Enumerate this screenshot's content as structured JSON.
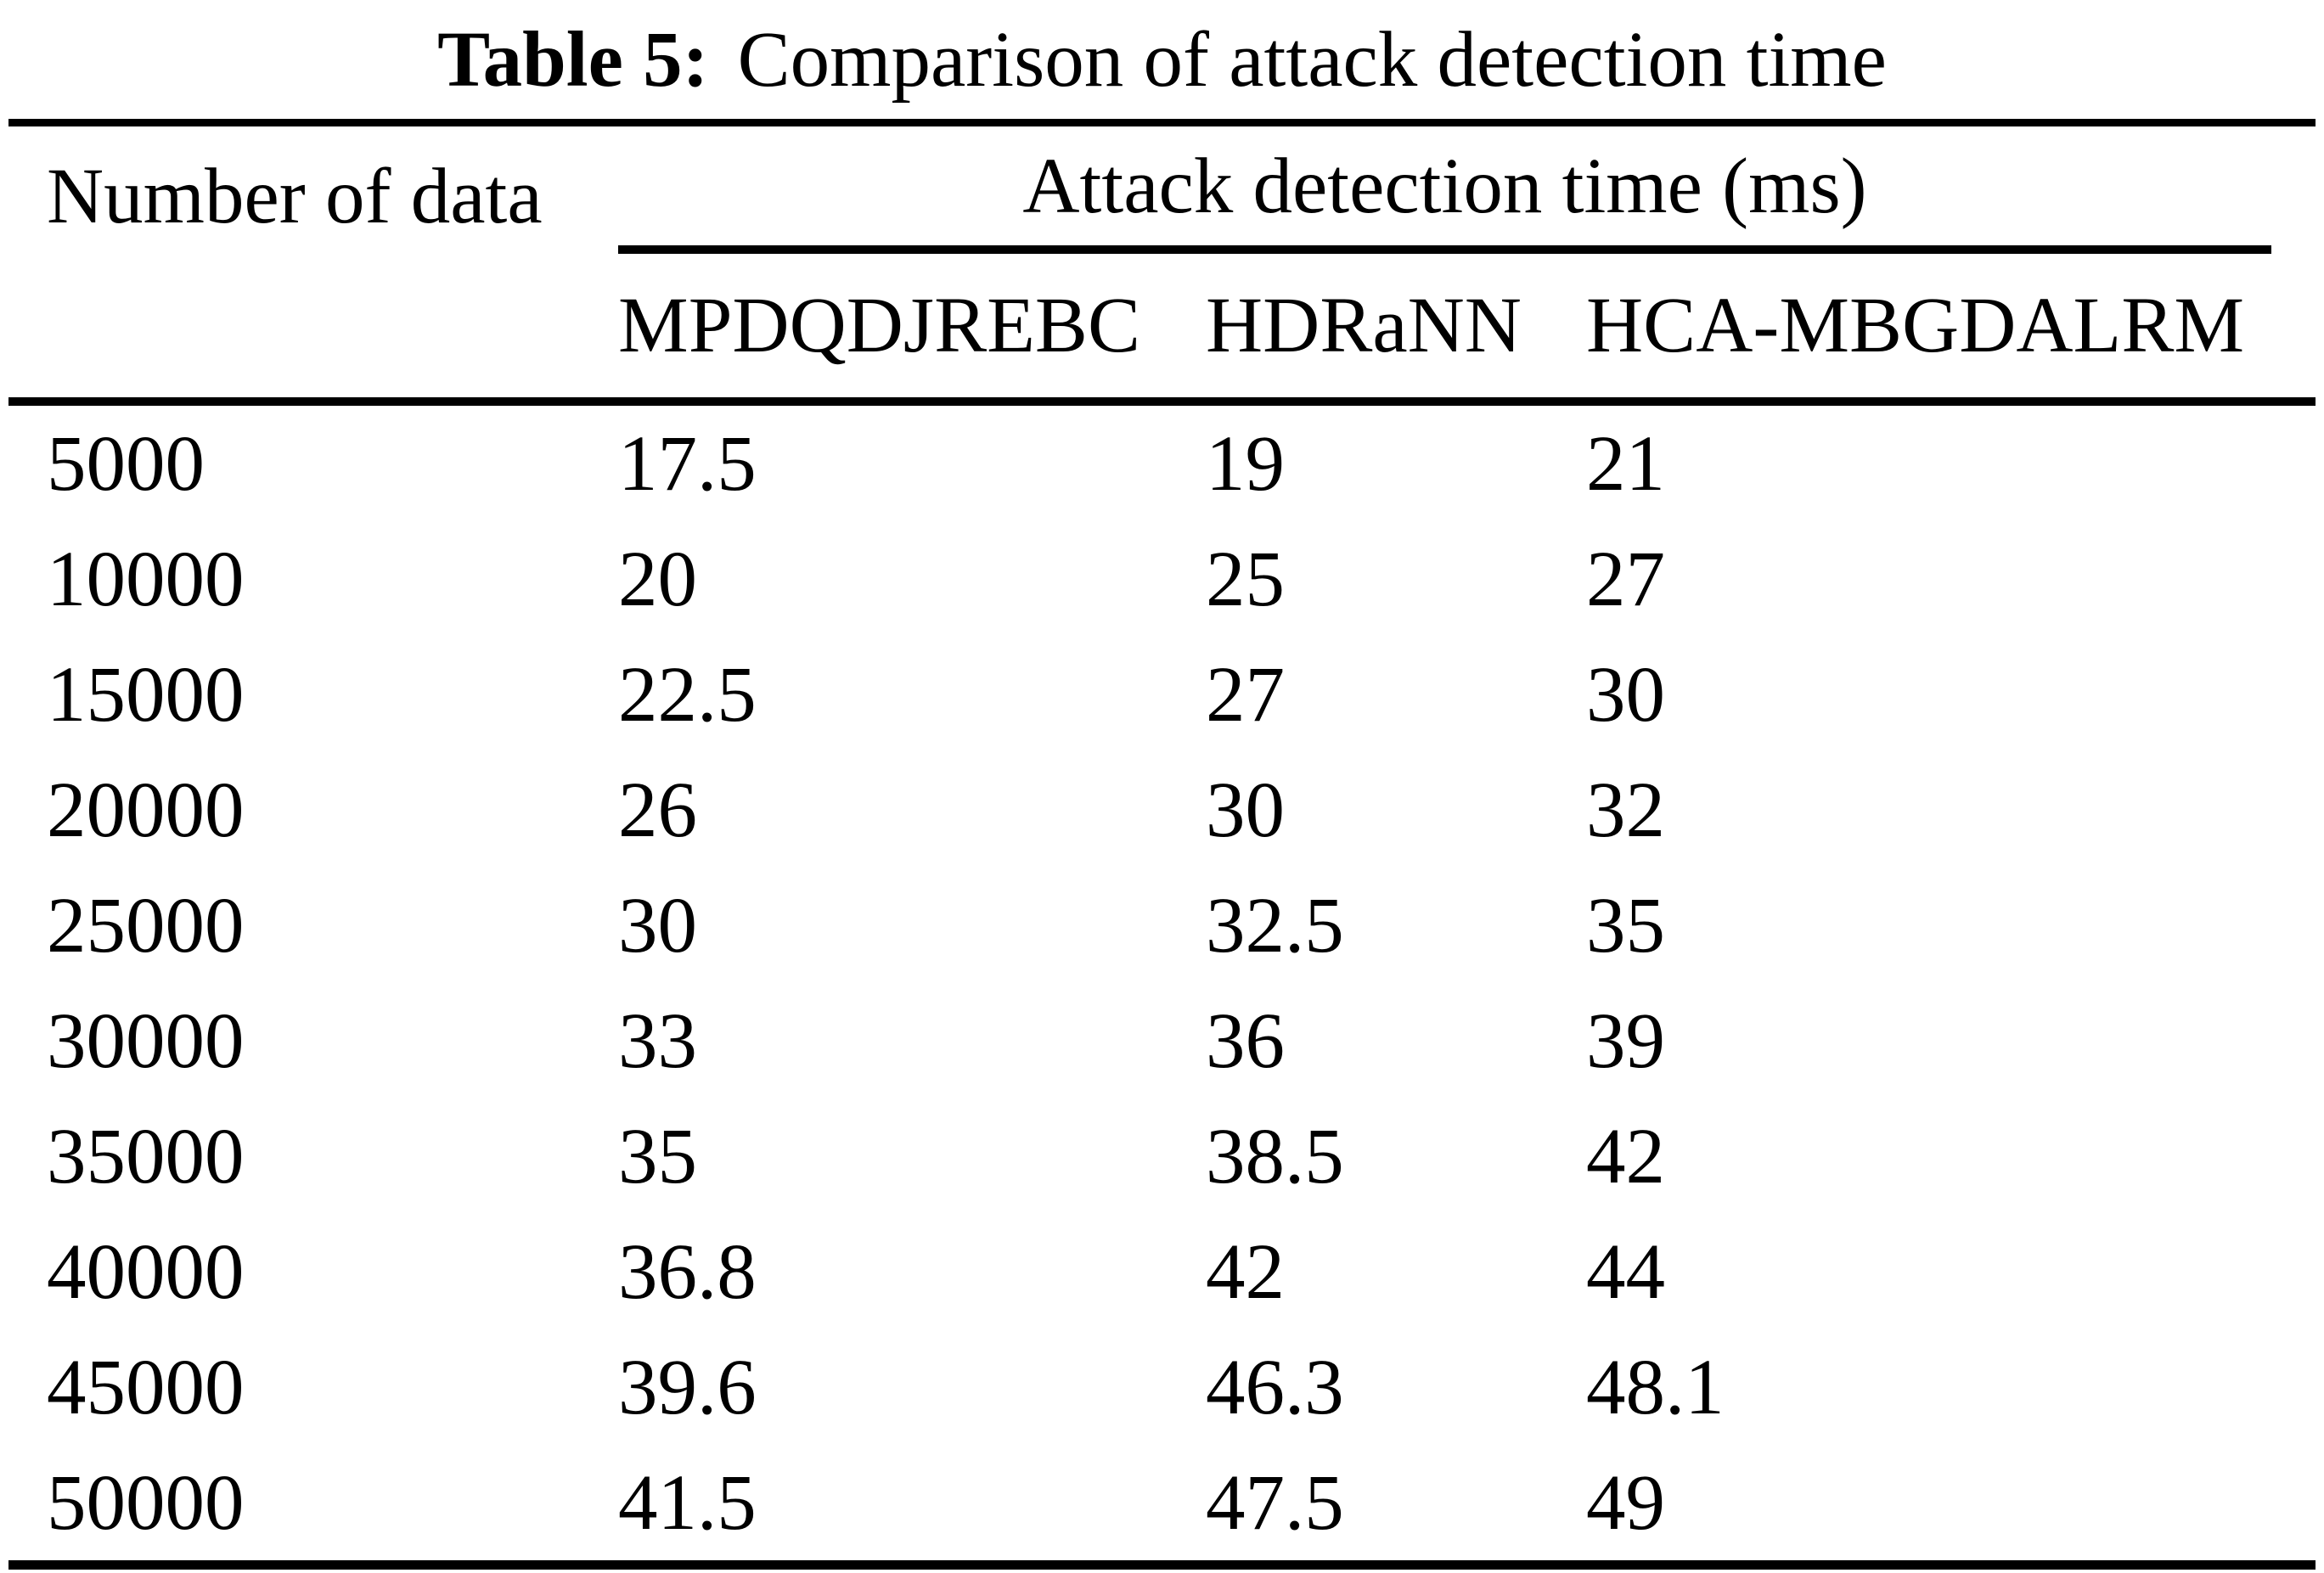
{
  "caption": {
    "label": "Table 5:",
    "text": "Comparison of attack detection time"
  },
  "table": {
    "col1_header": "Number of data",
    "group_header": "Attack detection time (ms)",
    "method_headers": [
      "MPDQDJREBC",
      "HDRaNN",
      "HCA-MBGDALRM"
    ],
    "rows": [
      {
        "cells": [
          "5000",
          "17.5",
          "19",
          "21"
        ]
      },
      {
        "cells": [
          "10000",
          "20",
          "25",
          "27"
        ]
      },
      {
        "cells": [
          "15000",
          "22.5",
          "27",
          "30"
        ]
      },
      {
        "cells": [
          "20000",
          "26",
          "30",
          "32"
        ]
      },
      {
        "cells": [
          "25000",
          "30",
          "32.5",
          "35"
        ]
      },
      {
        "cells": [
          "30000",
          "33",
          "36",
          "39"
        ]
      },
      {
        "cells": [
          "35000",
          "35",
          "38.5",
          "42"
        ]
      },
      {
        "cells": [
          "40000",
          "36.8",
          "42",
          "44"
        ]
      },
      {
        "cells": [
          "45000",
          "39.6",
          "46.3",
          "48.1"
        ]
      },
      {
        "cells": [
          "50000",
          "41.5",
          "47.5",
          "49"
        ]
      }
    ]
  },
  "colors": {
    "text": "#000000",
    "background": "#ffffff",
    "rule": "#000000"
  }
}
